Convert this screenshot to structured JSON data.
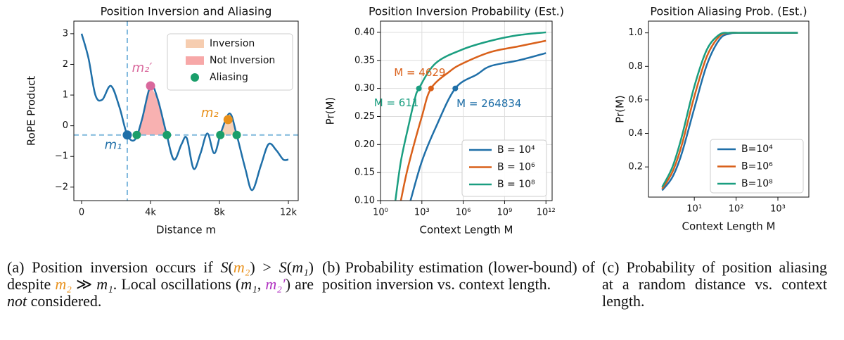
{
  "chart_data": [
    {
      "type": "line",
      "title": "Position Inversion and Aliasing",
      "xlabel": "Distance m",
      "ylabel": "RoPE Product",
      "xlim": [
        -450,
        12570
      ],
      "ylim": [
        -2.44,
        3.41
      ],
      "xticks": [
        0,
        {
          "value": 4000,
          "label": "4k"
        },
        {
          "value": 8000,
          "label": "8k"
        },
        {
          "value": 12000,
          "label": "12k"
        }
      ],
      "yticks": [
        {
          "value": -2,
          "label": "−2"
        },
        {
          "value": -1,
          "label": "−1"
        },
        0,
        1,
        2,
        3
      ],
      "grid": false,
      "legend": "upper right",
      "series": [
        {
          "color": "#1f6fa8",
          "x": [
            0,
            400,
            800,
            1200,
            1700,
            2200,
            2650,
            3100,
            3500,
            4000,
            4400,
            4900,
            5350,
            5800,
            6100,
            6500,
            6900,
            7300,
            7700,
            8100,
            8600,
            9000,
            9500,
            9900,
            10400,
            10850,
            11300,
            11700,
            12000
          ],
          "values": [
            3.0,
            2.2,
            1.0,
            0.85,
            1.3,
            0.6,
            -0.3,
            -0.45,
            0.2,
            1.3,
            0.9,
            -0.2,
            -1.1,
            -0.6,
            -0.4,
            -1.4,
            -0.9,
            -0.25,
            -0.9,
            -0.2,
            0.4,
            -0.3,
            -1.4,
            -2.1,
            -1.3,
            -0.6,
            -0.8,
            -1.1,
            -1.1
          ]
        }
      ],
      "hline": -0.3,
      "vline": 2650,
      "regions": [
        {
          "name": "Inversion",
          "color": "#f6cdb0",
          "x": [
            8050,
            9000
          ]
        },
        {
          "name": "Not Inversion",
          "color": "#f7a8a8",
          "x": [
            3200,
            4950
          ]
        }
      ],
      "aliasing": {
        "name": "Aliasing",
        "color": "#1a9e6a",
        "x": [
          3200,
          4950,
          8050,
          9000
        ],
        "y": [
          -0.3,
          -0.3,
          -0.3,
          -0.3
        ]
      },
      "points": [
        {
          "label": "m₁",
          "x": 2650,
          "y": -0.3,
          "color": "#1f6fa8"
        },
        {
          "label": "m₂′",
          "x": 4000,
          "y": 1.3,
          "color": "#d9689c"
        },
        {
          "label": "m₂",
          "x": 8500,
          "y": 0.2,
          "color": "#e8901a"
        }
      ]
    },
    {
      "type": "line",
      "title": "Position Inversion Probability (Est.)",
      "xlabel": "Context Length M",
      "ylabel": "Pr(M)",
      "xscale": "log",
      "xlim": [
        1,
        2800000000000
      ],
      "ylim": [
        0.1,
        0.42
      ],
      "xticks": [
        {
          "value": 1,
          "label": "10⁰"
        },
        {
          "value": 1000,
          "label": "10³"
        },
        {
          "value": 1000000,
          "label": "10⁶"
        },
        {
          "value": 1000000000,
          "label": "10⁹"
        },
        {
          "value": 1000000000000,
          "label": "10¹²"
        }
      ],
      "yticks": [
        {
          "value": 0.1,
          "label": "0.10"
        },
        0.15,
        {
          "value": 0.2,
          "label": "0.20"
        },
        0.25,
        {
          "value": 0.3,
          "label": "0.30"
        },
        0.35,
        {
          "value": 0.4,
          "label": "0.40"
        }
      ],
      "grid": true,
      "legend": "lower right",
      "series": [
        {
          "name": "B = 10⁴",
          "color": "#1f6fa8",
          "x": [
            150,
            1000,
            10000,
            264834,
            10000000,
            100000000,
            10000000000,
            1000000000000
          ],
          "values": [
            0.1,
            0.17,
            0.23,
            0.3,
            0.325,
            0.34,
            0.35,
            0.363
          ]
        },
        {
          "name": "B = 10⁶",
          "color": "#d9601a",
          "x": [
            30,
            100,
            1000,
            4629,
            100000,
            1000000,
            100000000,
            10000000000,
            1000000000000
          ],
          "values": [
            0.1,
            0.16,
            0.25,
            0.3,
            0.33,
            0.345,
            0.365,
            0.375,
            0.385
          ]
        },
        {
          "name": "B = 10⁸",
          "color": "#1a9e80",
          "x": [
            12,
            30,
            100,
            300,
            611,
            10000,
            1000000,
            100000000,
            10000000000,
            1000000000000
          ],
          "values": [
            0.1,
            0.17,
            0.23,
            0.28,
            0.3,
            0.345,
            0.37,
            0.385,
            0.395,
            0.4
          ]
        }
      ],
      "points": [
        {
          "label": "M = 611",
          "x": 611,
          "y": 0.3,
          "color": "#1a9e80"
        },
        {
          "label": "M = 4629",
          "x": 4629,
          "y": 0.3,
          "color": "#d9601a"
        },
        {
          "label": "M = 264834",
          "x": 264834,
          "y": 0.3,
          "color": "#1f6fa8"
        }
      ]
    },
    {
      "type": "line",
      "title": "Position Aliasing Prob. (Est.)",
      "xlabel": "Context Length M",
      "ylabel": "Pr(M)",
      "xscale": "log",
      "xlim": [
        0.8,
        5500
      ],
      "ylim": [
        0.02,
        1.07
      ],
      "xticks": [
        {
          "value": 10,
          "label": "10¹"
        },
        {
          "value": 100,
          "label": "10²"
        },
        {
          "value": 1000,
          "label": "10³"
        }
      ],
      "yticks": [
        0.2,
        0.4,
        0.6,
        0.8,
        {
          "value": 1.0,
          "label": "1.0"
        }
      ],
      "grid": false,
      "legend": "lower right",
      "x": [
        1.7,
        3,
        5,
        10,
        20,
        40,
        70,
        150,
        3000
      ],
      "series": [
        {
          "name": "B=10⁴",
          "color": "#1f6fa8",
          "values": [
            0.06,
            0.14,
            0.28,
            0.55,
            0.81,
            0.96,
            0.995,
            1.0,
            1.0
          ]
        },
        {
          "name": "B=10⁶",
          "color": "#d9601a",
          "values": [
            0.07,
            0.17,
            0.33,
            0.62,
            0.86,
            0.98,
            1.0,
            1.0,
            1.0
          ]
        },
        {
          "name": "B=10⁸",
          "color": "#1a9e80",
          "values": [
            0.08,
            0.2,
            0.38,
            0.68,
            0.9,
            0.99,
            1.0,
            1.0,
            1.0
          ]
        }
      ]
    }
  ],
  "captions": [
    {
      "segments": [
        {
          "text": "(a) Position inversion occurs if "
        },
        {
          "text": "S",
          "italic": true
        },
        {
          "text": "("
        },
        {
          "text": "m₂",
          "italic": true,
          "color": "#e8901a"
        },
        {
          "text": ") > "
        },
        {
          "text": "S",
          "italic": true
        },
        {
          "text": "("
        },
        {
          "text": "m₁",
          "italic": true
        },
        {
          "text": ") despite "
        },
        {
          "text": "m₂",
          "italic": true,
          "color": "#e8901a"
        },
        {
          "text": " ≫ "
        },
        {
          "text": "m₁",
          "italic": true
        },
        {
          "text": ". Local oscillations ("
        },
        {
          "text": "m₁",
          "italic": true
        },
        {
          "text": ", "
        },
        {
          "text": "m₂′",
          "italic": true,
          "color": "#b030c0"
        },
        {
          "text": ") are "
        },
        {
          "text": "not",
          "italic": true
        },
        {
          "text": " considered."
        }
      ]
    },
    {
      "segments": [
        {
          "text": "(b) Probability estimation (lower-bound) of position inversion vs. context length."
        }
      ]
    },
    {
      "segments": [
        {
          "text": "(c) Probability of position aliasing at a random distance vs. context length."
        }
      ]
    }
  ]
}
